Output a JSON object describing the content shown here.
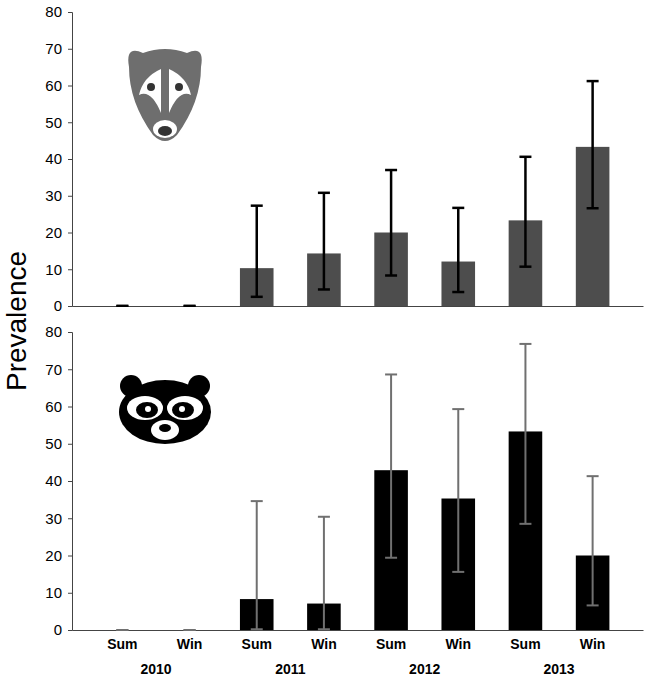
{
  "chart_data": [
    {
      "type": "bar",
      "ylabel": "Prevalence",
      "categories": [
        "Sum",
        "Win",
        "Sum",
        "Win",
        "Sum",
        "Win",
        "Sum",
        "Win"
      ],
      "values": [
        0,
        0,
        10.3,
        14.3,
        20,
        12.1,
        23.3,
        43.3
      ],
      "ci_low": [
        0,
        0,
        2.5,
        4.5,
        8.3,
        3.8,
        10.7,
        26.6
      ],
      "ci_high": [
        0,
        0,
        27.3,
        30.8,
        37,
        26.7,
        40.6,
        61.2
      ],
      "color": "#4d4d4d",
      "ylim": [
        0,
        80
      ],
      "yticks": [
        0,
        10,
        20,
        30,
        40,
        50,
        60,
        70,
        80
      ],
      "tick_labels": "y"
    },
    {
      "type": "bar",
      "categories": [
        "Sum",
        "Win",
        "Sum",
        "Win",
        "Sum",
        "Win",
        "Sum",
        "Win"
      ],
      "groups": [
        "2010",
        "2011",
        "2012",
        "2013"
      ],
      "values": [
        0,
        0,
        8.3,
        7.1,
        42.9,
        35.3,
        53.3,
        20
      ],
      "ci_low": [
        0,
        0,
        0.2,
        0.2,
        19.4,
        15.6,
        28.5,
        6.6
      ],
      "ci_high": [
        0,
        0,
        34.6,
        30.4,
        68.6,
        59.3,
        76.8,
        41.3
      ],
      "color": "#000000",
      "ylim": [
        0,
        80
      ],
      "yticks": [
        0,
        10,
        20,
        30,
        40,
        50,
        60,
        70,
        80
      ]
    }
  ]
}
